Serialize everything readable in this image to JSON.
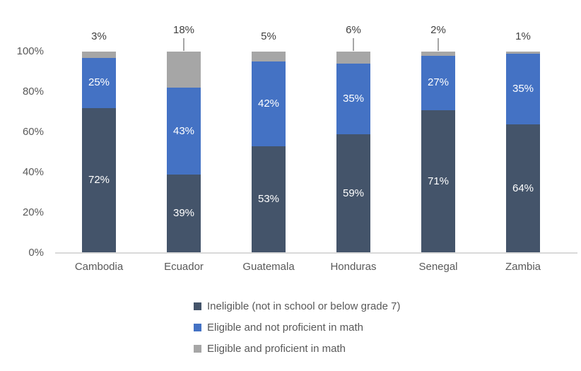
{
  "chart_data": {
    "type": "bar",
    "stacked": true,
    "title": "",
    "xlabel": "",
    "ylabel": "",
    "ylim": [
      0,
      100
    ],
    "grid": false,
    "legend_position": "bottom",
    "yticks": [
      "0%",
      "20%",
      "40%",
      "60%",
      "80%",
      "100%"
    ],
    "categories": [
      "Cambodia",
      "Ecuador",
      "Guatemala",
      "Honduras",
      "Senegal",
      "Zambia"
    ],
    "series": [
      {
        "name": "Ineligible (not in school or below grade 7)",
        "color": "#44546A",
        "values": [
          72,
          39,
          53,
          59,
          71,
          64
        ],
        "labels": [
          "72%",
          "39%",
          "53%",
          "59%",
          "71%",
          "64%"
        ],
        "label_position": "inside"
      },
      {
        "name": "Eligible and not proficient in math",
        "color": "#4472C4",
        "values": [
          25,
          43,
          42,
          35,
          27,
          35
        ],
        "labels": [
          "25%",
          "43%",
          "42%",
          "35%",
          "27%",
          "35%"
        ],
        "label_position": "inside"
      },
      {
        "name": "Eligible and proficient in math",
        "color": "#A6A6A6",
        "values": [
          3,
          18,
          5,
          6,
          2,
          1
        ],
        "labels": [
          "3%",
          "18%",
          "5%",
          "6%",
          "2%",
          "1%"
        ],
        "label_position": "outside-above",
        "leader_lines": [
          false,
          true,
          false,
          true,
          true,
          false
        ]
      }
    ]
  },
  "colors": {
    "background": "#FFFFFF",
    "axis_line": "#D9D9D9",
    "tick_text": "#595959",
    "outside_label_text": "#404040",
    "inside_label_text": "#FFFFFF",
    "leader_line": "#A6A6A6"
  }
}
